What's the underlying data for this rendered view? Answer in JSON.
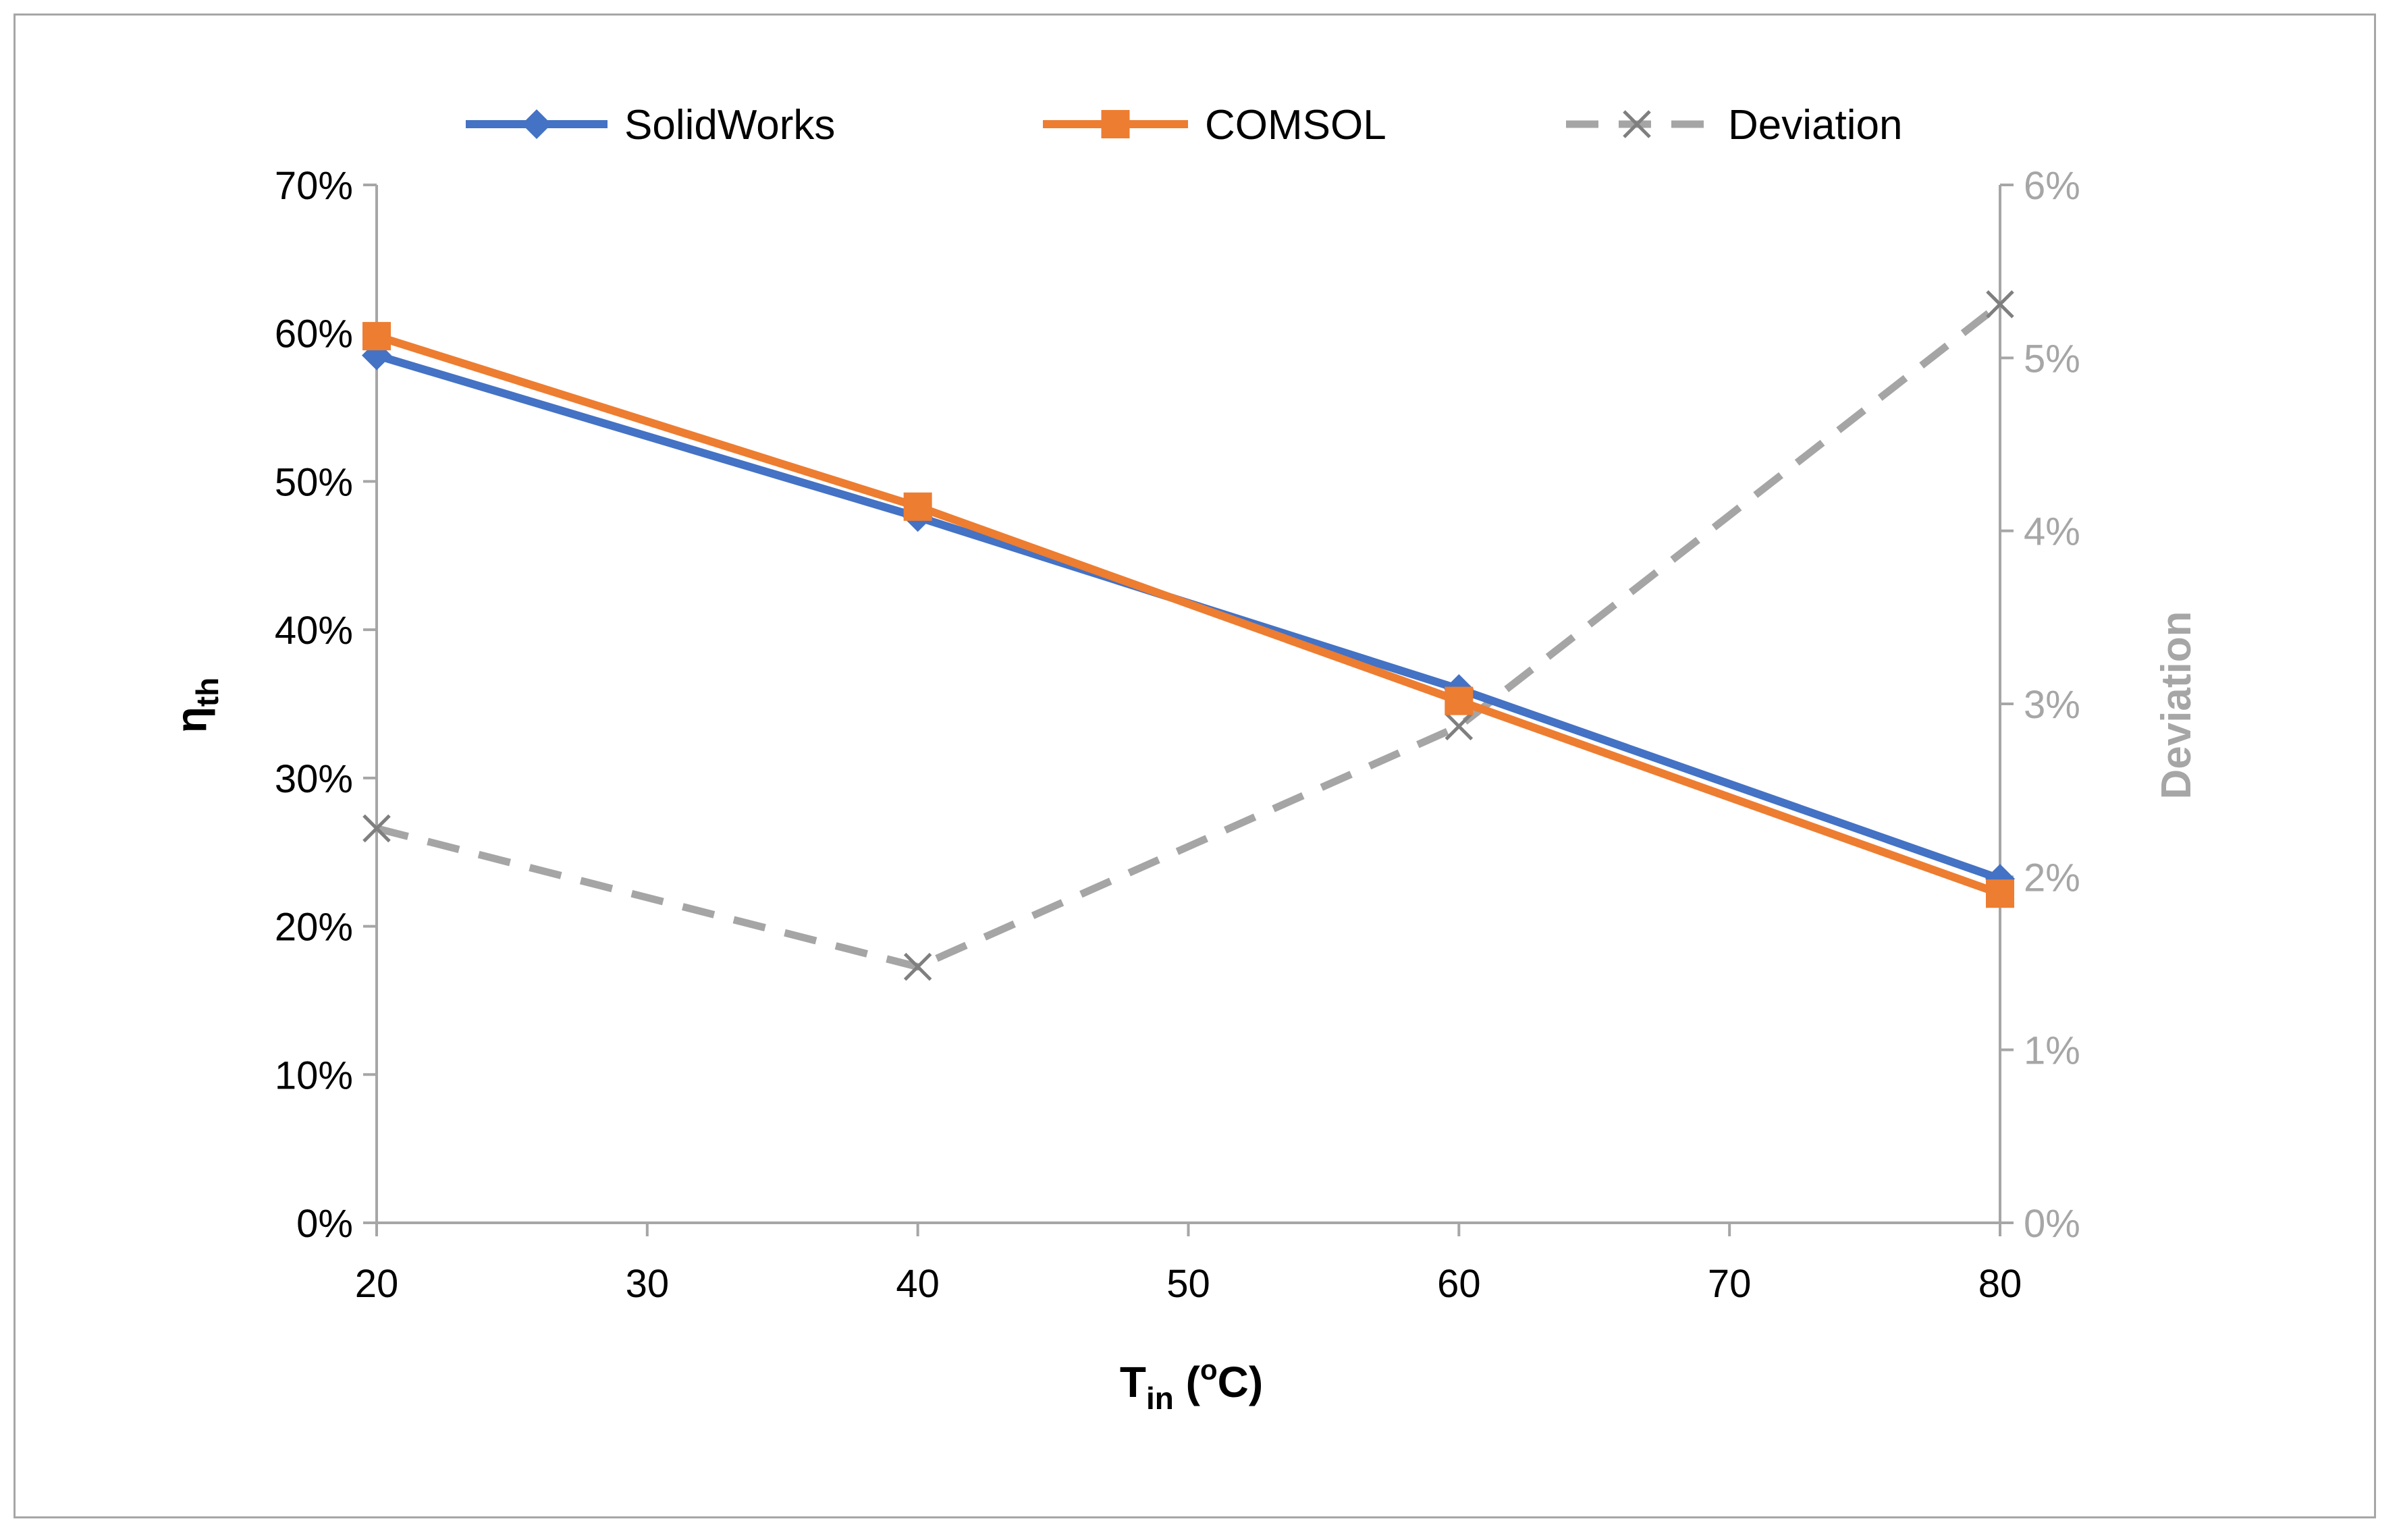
{
  "chart_data": {
    "type": "line",
    "x": [
      20,
      40,
      60,
      80
    ],
    "x_axis": {
      "label_main": "T",
      "label_sub": "in",
      "label_unit_open": " (",
      "label_sup": "o",
      "label_unit_close": "C)",
      "range": [
        20,
        80
      ],
      "ticks": [
        "20",
        "30",
        "40",
        "50",
        "60",
        "70",
        "80"
      ]
    },
    "y_axis_left": {
      "label_main": "η",
      "label_sub": "th",
      "range": [
        0,
        0.7
      ],
      "ticks": [
        "0%",
        "10%",
        "20%",
        "30%",
        "40%",
        "50%",
        "60%",
        "70%"
      ]
    },
    "y_axis_right": {
      "label": "Deviation",
      "range": [
        0,
        0.06
      ],
      "ticks": [
        "0%",
        "1%",
        "2%",
        "3%",
        "4%",
        "5%",
        "6%"
      ]
    },
    "series": [
      {
        "name": "SolidWorks",
        "axis": "left",
        "values": [
          0.585,
          0.476,
          0.36,
          0.232
        ],
        "color": "#4472c4",
        "marker": "diamond",
        "dash": "solid"
      },
      {
        "name": "COMSOL",
        "axis": "left",
        "values": [
          0.598,
          0.483,
          0.352,
          0.222
        ],
        "color": "#ed7d31",
        "marker": "square",
        "dash": "solid"
      },
      {
        "name": "Deviation",
        "axis": "right",
        "values": [
          0.0228,
          0.0148,
          0.0287,
          0.0531
        ],
        "color": "#a5a5a5",
        "marker": "x",
        "dash": "dashed"
      }
    ],
    "legend_position": "top",
    "grid": false
  }
}
